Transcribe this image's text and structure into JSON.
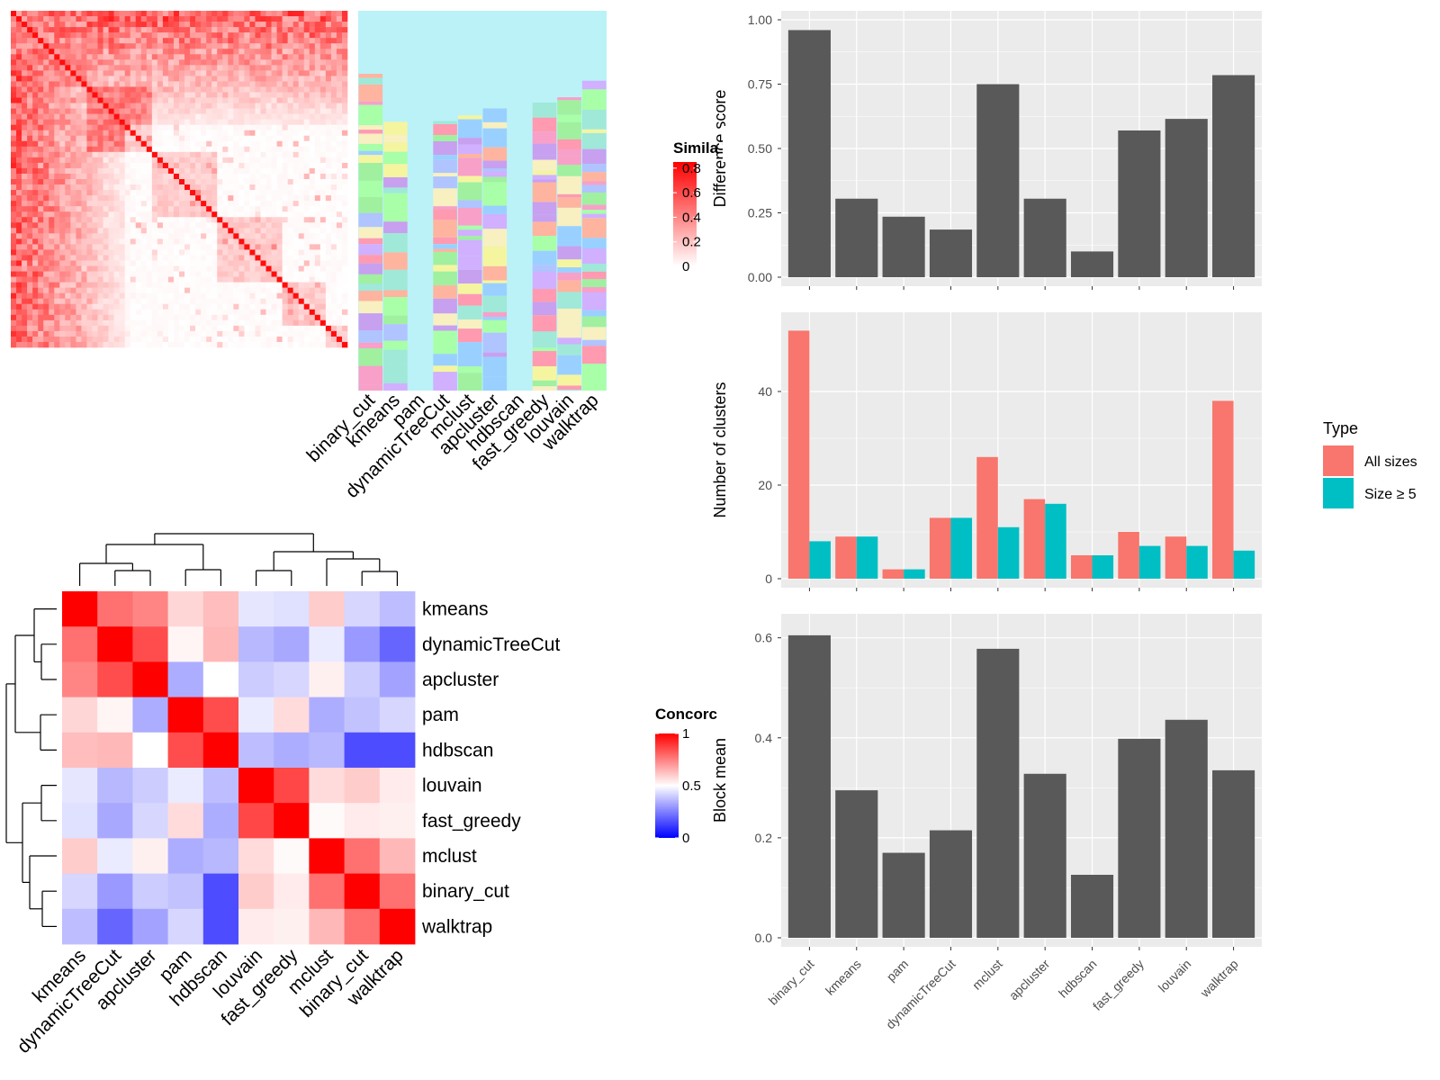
{
  "colors": {
    "panel_bg": "#ebebeb",
    "bar_gray": "#595959",
    "bar_all_sizes": "#f8766d",
    "bar_size5": "#00bfc4",
    "heat_red": "#ff0000",
    "heat_blue": "#0000ff"
  },
  "chart_data": [
    {
      "id": "similarity_heatmap",
      "type": "heatmap",
      "title": "",
      "column_labels": [
        "binary_cut",
        "kmeans",
        "pam",
        "dynamicTreeCut",
        "mclust",
        "apcluster",
        "hdbscan",
        "fast_greedy",
        "louvain",
        "walktrap"
      ],
      "legend": {
        "title": "Simila",
        "ticks": [
          "0.8",
          "0.6",
          "0.4",
          "0.2",
          "0"
        ],
        "range": [
          0,
          0.85
        ]
      }
    },
    {
      "id": "difference_score",
      "type": "bar",
      "categories": [
        "binary_cut",
        "kmeans",
        "pam",
        "dynamicTreeCut",
        "mclust",
        "apcluster",
        "hdbscan",
        "fast_greedy",
        "louvain",
        "walktrap"
      ],
      "values": [
        0.96,
        0.305,
        0.235,
        0.185,
        0.75,
        0.305,
        0.1,
        0.57,
        0.615,
        0.785
      ],
      "ylabel": "Difference score",
      "ylim": [
        0,
        1
      ],
      "yticks": [
        "0.00",
        "0.25",
        "0.50",
        "0.75",
        "1.00"
      ]
    },
    {
      "id": "number_of_clusters",
      "type": "bar",
      "categories": [
        "binary_cut",
        "kmeans",
        "pam",
        "dynamicTreeCut",
        "mclust",
        "apcluster",
        "hdbscan",
        "fast_greedy",
        "louvain",
        "walktrap"
      ],
      "series": [
        {
          "name": "All sizes",
          "values": [
            53,
            9,
            2,
            13,
            26,
            17,
            5,
            10,
            9,
            38
          ]
        },
        {
          "name": "Size ≥ 5",
          "values": [
            8,
            9,
            2,
            13,
            11,
            16,
            5,
            7,
            7,
            6
          ]
        }
      ],
      "ylabel": "Number of clusters",
      "ylim": [
        0,
        55
      ],
      "yticks": [
        "0",
        "20",
        "40"
      ],
      "legend": {
        "title": "Type",
        "position": "right"
      }
    },
    {
      "id": "block_mean",
      "type": "bar",
      "categories": [
        "binary_cut",
        "kmeans",
        "pam",
        "dynamicTreeCut",
        "mclust",
        "apcluster",
        "hdbscan",
        "fast_greedy",
        "louvain",
        "walktrap"
      ],
      "values": [
        0.605,
        0.295,
        0.17,
        0.215,
        0.578,
        0.328,
        0.126,
        0.398,
        0.436,
        0.335
      ],
      "ylabel": "Block mean",
      "ylim": [
        0,
        0.63
      ],
      "yticks": [
        "0.0",
        "0.2",
        "0.4",
        "0.6"
      ]
    },
    {
      "id": "concordance_heatmap",
      "type": "heatmap",
      "labels": [
        "kmeans",
        "dynamicTreeCut",
        "apcluster",
        "pam",
        "hdbscan",
        "louvain",
        "fast_greedy",
        "mclust",
        "binary_cut",
        "walktrap"
      ],
      "matrix": [
        [
          1.0,
          0.78,
          0.74,
          0.58,
          0.63,
          0.45,
          0.44,
          0.6,
          0.42,
          0.37
        ],
        [
          0.78,
          1.0,
          0.85,
          0.52,
          0.64,
          0.36,
          0.33,
          0.46,
          0.3,
          0.2
        ],
        [
          0.74,
          0.85,
          1.0,
          0.34,
          0.5,
          0.4,
          0.42,
          0.53,
          0.4,
          0.32
        ],
        [
          0.58,
          0.52,
          0.34,
          1.0,
          0.85,
          0.46,
          0.57,
          0.34,
          0.38,
          0.42
        ],
        [
          0.63,
          0.64,
          0.5,
          0.85,
          1.0,
          0.37,
          0.34,
          0.36,
          0.15,
          0.15
        ],
        [
          0.45,
          0.36,
          0.4,
          0.46,
          0.37,
          1.0,
          0.86,
          0.57,
          0.6,
          0.54
        ],
        [
          0.44,
          0.33,
          0.42,
          0.57,
          0.34,
          0.86,
          1.0,
          0.51,
          0.54,
          0.53
        ],
        [
          0.6,
          0.46,
          0.53,
          0.34,
          0.36,
          0.57,
          0.51,
          1.0,
          0.78,
          0.64
        ],
        [
          0.42,
          0.3,
          0.4,
          0.38,
          0.15,
          0.6,
          0.54,
          0.78,
          1.0,
          0.78
        ],
        [
          0.37,
          0.2,
          0.32,
          0.42,
          0.15,
          0.54,
          0.53,
          0.64,
          0.78,
          1.0
        ]
      ],
      "legend": {
        "title": "Concorc",
        "ticks": [
          "1",
          "0.5",
          "0"
        ],
        "range": [
          0,
          1
        ]
      }
    }
  ]
}
